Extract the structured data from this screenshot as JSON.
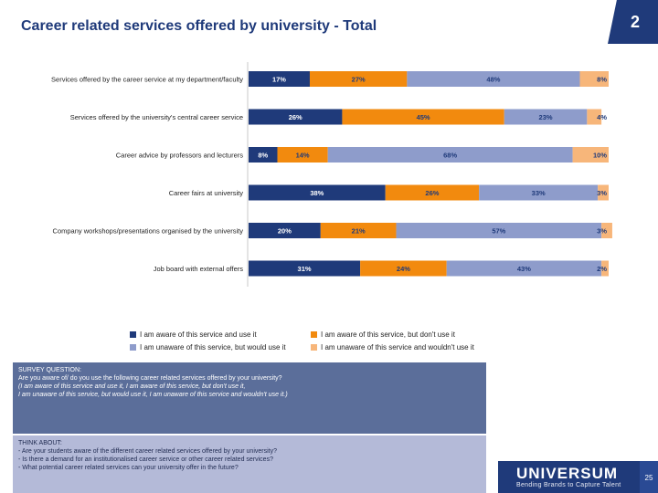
{
  "title": "Career related services offered by university - Total",
  "page_number": "2",
  "footer": {
    "logo": "UNIVERSUM",
    "tagline": "Bending Brands to Capture Talent",
    "slide_number": "25"
  },
  "colors": {
    "series": [
      "#1F3A7A",
      "#F28A0E",
      "#8E9CCB",
      "#F7B67A"
    ],
    "label_on_dark": "#ffffff",
    "label_on_light": "#1F3A7A"
  },
  "chart_data": {
    "type": "bar",
    "orientation": "horizontal",
    "stacked": true,
    "categories": [
      "Services offered by the career service at my department/faculty",
      "Services offered by the university's central career service",
      "Career advice by professors and lecturers",
      "Career fairs at university",
      "Company workshops/presentations organised by the university",
      "Job board with external offers"
    ],
    "series": [
      {
        "name": "I am aware of this service and use it",
        "values": [
          17,
          26,
          8,
          38,
          20,
          31
        ]
      },
      {
        "name": "I am aware of this service, but don't use it",
        "values": [
          27,
          45,
          14,
          26,
          21,
          24
        ]
      },
      {
        "name": "I am unaware of this service, but would use it",
        "values": [
          48,
          23,
          68,
          33,
          57,
          43
        ]
      },
      {
        "name": "I am unaware of this service and wouldn't use it",
        "values": [
          8,
          4,
          10,
          3,
          3,
          2
        ]
      }
    ],
    "value_labels": [
      [
        "17%",
        "27%",
        "48%",
        "8%"
      ],
      [
        "26%",
        "45%",
        "23%",
        "4%"
      ],
      [
        "8%",
        "14%",
        "68%",
        "10%"
      ],
      [
        "38%",
        "26%",
        "33%",
        "3%"
      ],
      [
        "20%",
        "21%",
        "57%",
        "3%"
      ],
      [
        "31%",
        "24%",
        "43%",
        "2%"
      ]
    ],
    "xlim": [
      0,
      100
    ],
    "legend_position": "bottom"
  },
  "survey": {
    "heading": "SURVEY QUESTION:",
    "question": "Are you aware of/ do you use the following career related services offered by your university?",
    "options_line1": "(I am aware of this service and use it, I am aware of this service, but don't use it,",
    "options_line2": " I am unaware of this service, but would use it, I am unaware of this service and wouldn't use it.)"
  },
  "think": {
    "heading": "THINK ABOUT:",
    "items": [
      "- Are your students aware of the different career related services offered by your university?",
      "- Is there a demand for an institutionalised career service or other career related services?",
      "- What potential career related services can your university offer in the future?"
    ]
  }
}
